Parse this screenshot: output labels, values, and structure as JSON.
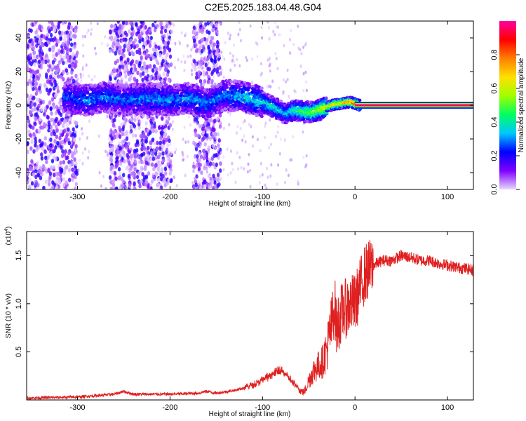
{
  "title": "C2E5.2025.183.04.48.G04",
  "chart_data": [
    {
      "type": "heatmap",
      "xlabel": "Height of straight line (km)",
      "ylabel": "Frequency (Hz)",
      "xlim": [
        -355,
        128
      ],
      "ylim": [
        -50,
        50
      ],
      "xticks": [
        -300,
        -200,
        -100,
        0,
        100
      ],
      "yticks": [
        -40,
        -20,
        0,
        20,
        40
      ],
      "colorbar": {
        "label": "Normalized spectral amplitude",
        "range": [
          0,
          1
        ],
        "ticks": [
          0.0,
          0.2,
          0.4,
          0.6,
          0.8
        ],
        "colors": [
          "#e8d8ff",
          "#7f00ff",
          "#0000ff",
          "#00c8ff",
          "#00ff60",
          "#a0ff00",
          "#ffe000",
          "#ff8000",
          "#ff0000",
          "#ff00a0"
        ]
      },
      "frequency_trace": [
        {
          "x": -315,
          "y": 5,
          "amp": 0.25
        },
        {
          "x": -290,
          "y": 3,
          "amp": 0.3
        },
        {
          "x": -270,
          "y": 5,
          "amp": 0.3
        },
        {
          "x": -250,
          "y": 3,
          "amp": 0.28
        },
        {
          "x": -225,
          "y": 4,
          "amp": 0.3
        },
        {
          "x": -200,
          "y": 3,
          "amp": 0.3
        },
        {
          "x": -180,
          "y": 4,
          "amp": 0.32
        },
        {
          "x": -160,
          "y": 1,
          "amp": 0.3
        },
        {
          "x": -140,
          "y": 6,
          "amp": 0.3
        },
        {
          "x": -120,
          "y": 5,
          "amp": 0.35
        },
        {
          "x": -100,
          "y": 2,
          "amp": 0.38
        },
        {
          "x": -85,
          "y": -2,
          "amp": 0.4
        },
        {
          "x": -75,
          "y": -5,
          "amp": 0.35
        },
        {
          "x": -65,
          "y": -3,
          "amp": 0.45
        },
        {
          "x": -55,
          "y": -4,
          "amp": 0.5
        },
        {
          "x": -45,
          "y": -4,
          "amp": 0.55
        },
        {
          "x": -35,
          "y": -2,
          "amp": 0.6
        },
        {
          "x": -25,
          "y": 0,
          "amp": 0.7
        },
        {
          "x": -15,
          "y": 1,
          "amp": 0.75
        },
        {
          "x": -5,
          "y": 2,
          "amp": 0.8
        },
        {
          "x": 5,
          "y": 0,
          "amp": 0.9
        },
        {
          "x": 50,
          "y": 0,
          "amp": 0.95
        },
        {
          "x": 128,
          "y": 0,
          "amp": 0.95
        }
      ],
      "noise_bands": [
        {
          "x_range": [
            -355,
            -300
          ],
          "y_range": [
            -50,
            50
          ]
        },
        {
          "x_range": [
            -265,
            -198
          ],
          "y_range": [
            -50,
            50
          ]
        },
        {
          "x_range": [
            -175,
            -145
          ],
          "y_range": [
            -50,
            50
          ]
        }
      ]
    },
    {
      "type": "line",
      "xlabel": "Height of straight line (km)",
      "ylabel": "SNR (10 * v/v)",
      "y_multiplier": "(x10",
      "y_multiplier_exp": "4",
      "xlim": [
        -355,
        128
      ],
      "ylim": [
        0,
        1.75
      ],
      "xticks": [
        -300,
        -200,
        -100,
        0,
        100
      ],
      "yticks": [
        0.5,
        1.0,
        1.5
      ],
      "series": [
        {
          "color": "#e02020",
          "x": [
            -355,
            -300,
            -260,
            -250,
            -240,
            -200,
            -170,
            -160,
            -150,
            -130,
            -110,
            -100,
            -90,
            -80,
            -70,
            -60,
            -55,
            -50,
            -45,
            -40,
            -35,
            -30,
            -25,
            -22,
            -20,
            -15,
            -10,
            -5,
            0,
            10,
            20,
            30,
            40,
            50,
            60,
            70,
            80,
            90,
            100,
            110,
            128
          ],
          "y": [
            0.02,
            0.03,
            0.06,
            0.09,
            0.06,
            0.06,
            0.07,
            0.09,
            0.07,
            0.1,
            0.15,
            0.2,
            0.25,
            0.3,
            0.2,
            0.1,
            0.08,
            0.2,
            0.3,
            0.35,
            0.4,
            0.55,
            0.8,
            1.0,
            0.75,
            0.9,
            0.95,
            1.0,
            1.0,
            1.3,
            1.4,
            1.45,
            1.45,
            1.5,
            1.48,
            1.45,
            1.45,
            1.42,
            1.4,
            1.38,
            1.35
          ]
        }
      ]
    }
  ]
}
